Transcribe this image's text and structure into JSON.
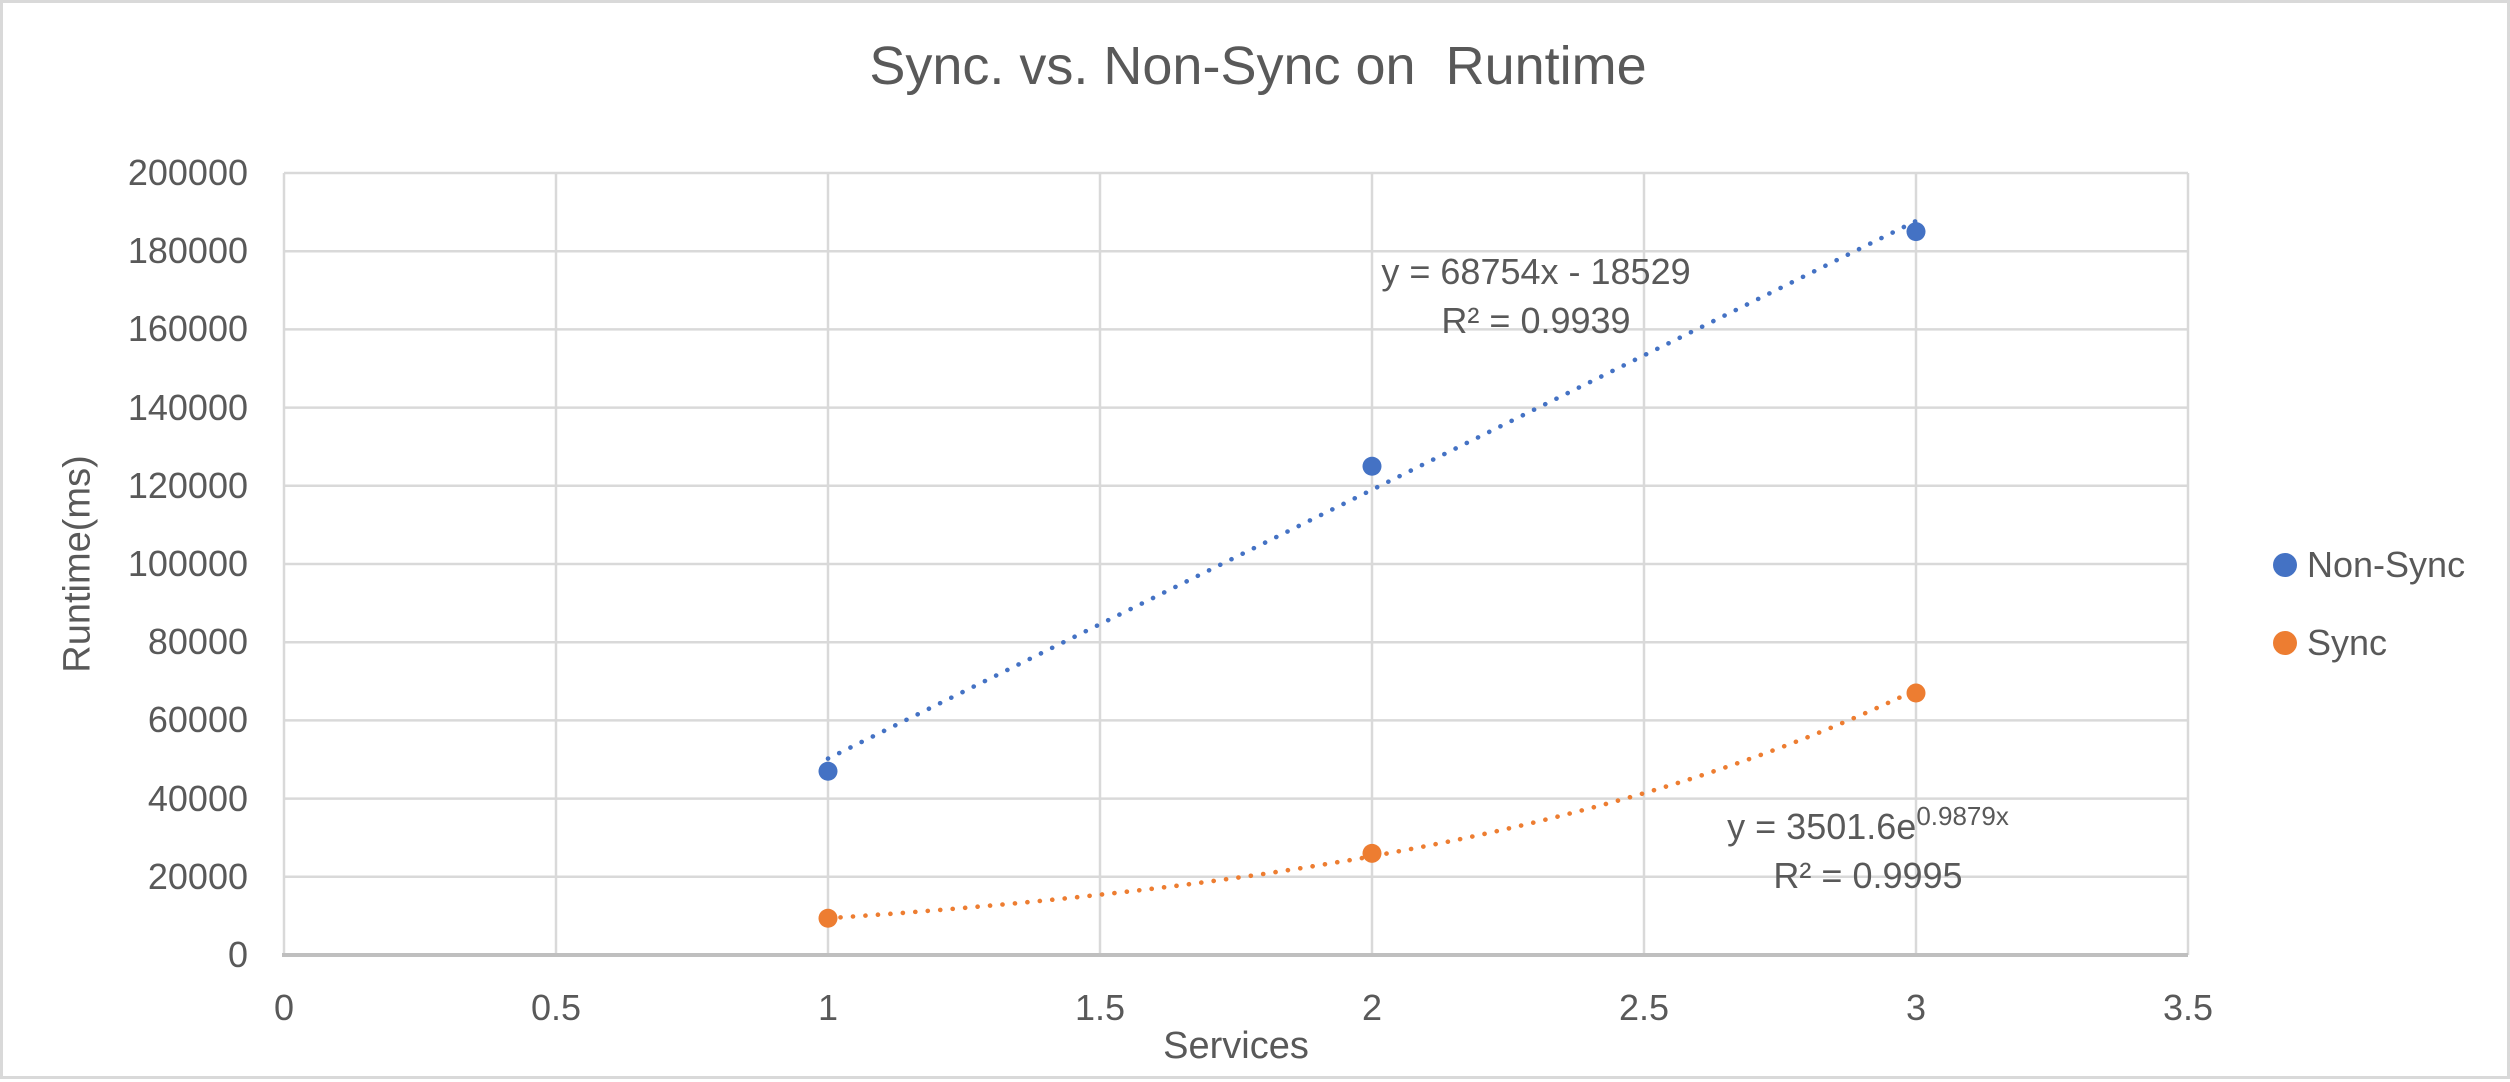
{
  "colors": {
    "background": "#FFFFFF",
    "frame_border": "#D9D9D9",
    "text": "#595959",
    "gridline": "#D9D9D9",
    "axis_line": "#BFBFBF",
    "nonsync_blue": "#4472C4",
    "sync_orange": "#ED7D31"
  },
  "annotations": {
    "nonsync_equation": "y = 68754x - 18529",
    "nonsync_r2": "R² = 0.9939",
    "sync_equation_base": "y = 3501.6e",
    "sync_equation_exponent": "0.9879x",
    "sync_r2": "R² = 0.9995"
  },
  "chart_data": {
    "type": "scatter",
    "title": "Sync. vs. Non-Sync on  Runtime",
    "xlabel": "Services",
    "ylabel": "Runtime(ms)",
    "xlim": [
      0,
      3.5
    ],
    "ylim": [
      0,
      200000
    ],
    "grid": true,
    "legend_position": "right-middle",
    "x_ticks": [
      {
        "value": 0,
        "label": "0"
      },
      {
        "value": 0.5,
        "label": "0.5"
      },
      {
        "value": 1,
        "label": "1"
      },
      {
        "value": 1.5,
        "label": "1.5"
      },
      {
        "value": 2,
        "label": "2"
      },
      {
        "value": 2.5,
        "label": "2.5"
      },
      {
        "value": 3,
        "label": "3"
      },
      {
        "value": 3.5,
        "label": "3.5"
      }
    ],
    "y_ticks": [
      {
        "value": 0,
        "label": "0"
      },
      {
        "value": 20000,
        "label": "20000"
      },
      {
        "value": 40000,
        "label": "40000"
      },
      {
        "value": 60000,
        "label": "60000"
      },
      {
        "value": 80000,
        "label": "80000"
      },
      {
        "value": 100000,
        "label": "100000"
      },
      {
        "value": 120000,
        "label": "120000"
      },
      {
        "value": 140000,
        "label": "140000"
      },
      {
        "value": 160000,
        "label": "160000"
      },
      {
        "value": 180000,
        "label": "180000"
      },
      {
        "value": 200000,
        "label": "200000"
      }
    ],
    "series": [
      {
        "name": "Non-Sync",
        "color": "#4472C4",
        "marker": "circle",
        "points": [
          {
            "x": 1,
            "y": 47000
          },
          {
            "x": 2,
            "y": 125000
          },
          {
            "x": 3,
            "y": 185000
          }
        ],
        "trendline": {
          "type": "linear",
          "style": "dotted",
          "slope": 68754,
          "intercept": -18529,
          "range": [
            1,
            3
          ],
          "equation": "y = 68754x - 18529",
          "r_squared": 0.9939
        }
      },
      {
        "name": "Sync",
        "color": "#ED7D31",
        "marker": "circle",
        "points": [
          {
            "x": 1,
            "y": 9400
          },
          {
            "x": 2,
            "y": 26000
          },
          {
            "x": 3,
            "y": 67000
          }
        ],
        "trendline": {
          "type": "exponential",
          "style": "dotted",
          "coefficient": 3501.6,
          "exponent": 0.9879,
          "range": [
            1,
            3
          ],
          "equation": "y = 3501.6e^0.9879x",
          "r_squared": 0.9995
        }
      }
    ]
  }
}
